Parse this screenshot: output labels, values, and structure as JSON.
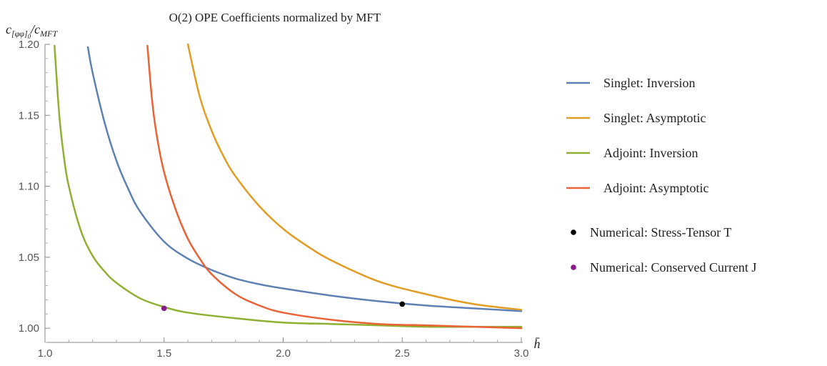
{
  "chart_data": {
    "type": "line",
    "title": "O(2) OPE Coefficients normalized by MFT",
    "xlabel": "h̄",
    "ylabel": "c[φφ]0/cMFT",
    "xlim": [
      1.0,
      3.0
    ],
    "ylim": [
      0.99,
      1.2
    ],
    "x_ticks": [
      "1.0",
      "1.5",
      "2.0",
      "2.5",
      "3.0"
    ],
    "y_ticks": [
      "1.00",
      "1.05",
      "1.10",
      "1.15",
      "1.20"
    ],
    "grid": false,
    "legend_position": "right",
    "series": [
      {
        "name": "Singlet: Inversion",
        "color": "#5e81b5",
        "x": [
          1.18,
          1.2,
          1.25,
          1.3,
          1.35,
          1.4,
          1.5,
          1.6,
          1.7,
          1.8,
          1.9,
          2.0,
          2.2,
          2.4,
          2.6,
          2.8,
          3.0
        ],
        "values": [
          1.198,
          1.18,
          1.145,
          1.118,
          1.098,
          1.082,
          1.061,
          1.049,
          1.041,
          1.035,
          1.031,
          1.028,
          1.023,
          1.019,
          1.016,
          1.014,
          1.012
        ]
      },
      {
        "name": "Singlet: Asymptotic",
        "color": "#e19c24",
        "x": [
          1.6,
          1.65,
          1.7,
          1.75,
          1.8,
          1.9,
          2.0,
          2.1,
          2.2,
          2.4,
          2.6,
          2.8,
          3.0
        ],
        "values": [
          1.2,
          1.163,
          1.139,
          1.121,
          1.107,
          1.086,
          1.07,
          1.058,
          1.048,
          1.033,
          1.024,
          1.017,
          1.013
        ]
      },
      {
        "name": "Adjoint: Inversion",
        "color": "#8fb032",
        "x": [
          1.04,
          1.06,
          1.08,
          1.1,
          1.15,
          1.2,
          1.25,
          1.3,
          1.4,
          1.5,
          1.6,
          1.8,
          2.0,
          2.2,
          2.4,
          2.6,
          2.8,
          3.0
        ],
        "values": [
          1.199,
          1.15,
          1.12,
          1.1,
          1.069,
          1.051,
          1.04,
          1.032,
          1.021,
          1.015,
          1.011,
          1.007,
          1.004,
          1.003,
          1.002,
          1.001,
          1.001,
          1.001
        ]
      },
      {
        "name": "Adjoint: Asymptotic",
        "color": "#eb6235",
        "x": [
          1.43,
          1.45,
          1.47,
          1.5,
          1.55,
          1.6,
          1.65,
          1.7,
          1.8,
          1.9,
          2.0,
          2.2,
          2.4,
          2.6,
          2.8,
          3.0
        ],
        "values": [
          1.199,
          1.16,
          1.135,
          1.11,
          1.083,
          1.063,
          1.049,
          1.038,
          1.024,
          1.016,
          1.011,
          1.006,
          1.003,
          1.002,
          1.001,
          1.0
        ]
      }
    ],
    "points": [
      {
        "name": "Numerical: Stress-Tensor T",
        "color": "#000000",
        "x": 2.5,
        "y": 1.017
      },
      {
        "name": "Numerical: Conserved Current J",
        "color": "#8b1a8b",
        "x": 1.5,
        "y": 1.014
      }
    ]
  }
}
